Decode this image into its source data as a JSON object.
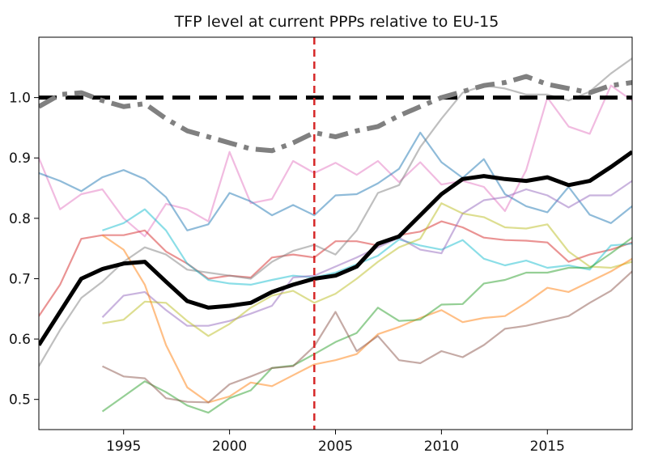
{
  "chart_data": {
    "type": "line",
    "title": "TFP level at current PPPs relative to EU-15",
    "xlabel": "",
    "ylabel": "",
    "xlim": [
      1991,
      2019
    ],
    "ylim": [
      0.45,
      1.1
    ],
    "xticks": [
      1995,
      2000,
      2005,
      2010,
      2015
    ],
    "yticks": [
      0.5,
      0.6,
      0.7,
      0.8,
      0.9,
      1.0
    ],
    "xtick_labels": [
      "1995",
      "2000",
      "2005",
      "2010",
      "2015"
    ],
    "ytick_labels": [
      "0.5",
      "0.6",
      "0.7",
      "0.8",
      "0.9",
      "1.0"
    ],
    "grid": false,
    "legend": "none",
    "reference_lines": [
      {
        "orientation": "horizontal",
        "value": 1.0,
        "style": "dashed",
        "color": "#000000"
      },
      {
        "orientation": "vertical",
        "value": 2004,
        "style": "dashed",
        "color": "#d62728"
      }
    ],
    "series": [
      {
        "style": "thin",
        "color": "#e377c2",
        "x": [
          1991,
          1992,
          1993,
          1994,
          1995,
          1996,
          1997,
          1998,
          1999,
          2000,
          2001,
          2002,
          2003,
          2004,
          2005,
          2006,
          2007,
          2008,
          2009,
          2010,
          2011,
          2012,
          2013,
          2014,
          2015,
          2016,
          2017,
          2018,
          2019
        ],
        "y": [
          0.9,
          0.815,
          0.84,
          0.848,
          0.8,
          0.77,
          0.824,
          0.815,
          0.795,
          0.91,
          0.825,
          0.832,
          0.895,
          0.875,
          0.892,
          0.872,
          0.895,
          0.86,
          0.893,
          0.856,
          0.862,
          0.852,
          0.812,
          0.88,
          1.0,
          0.952,
          0.94,
          1.02,
          0.995
        ]
      },
      {
        "style": "thin",
        "color": "#1f77b4",
        "x": [
          1991,
          1992,
          1993,
          1994,
          1995,
          1996,
          1997,
          1998,
          1999,
          2000,
          2001,
          2002,
          2003,
          2004,
          2005,
          2006,
          2007,
          2008,
          2009,
          2010,
          2011,
          2012,
          2013,
          2014,
          2015,
          2016,
          2017,
          2018,
          2019
        ],
        "y": [
          0.875,
          0.862,
          0.845,
          0.868,
          0.88,
          0.865,
          0.835,
          0.78,
          0.79,
          0.842,
          0.828,
          0.805,
          0.822,
          0.805,
          0.838,
          0.84,
          0.858,
          0.882,
          0.942,
          0.893,
          0.867,
          0.898,
          0.84,
          0.82,
          0.81,
          0.852,
          0.806,
          0.792,
          0.82
        ]
      },
      {
        "style": "thin",
        "color": "#d62728",
        "x": [
          1991,
          1992,
          1993,
          1994,
          1995,
          1996,
          1997,
          1998,
          1999,
          2000,
          2001,
          2002,
          2003,
          2004,
          2005,
          2006,
          2007,
          2008,
          2009,
          2010,
          2011,
          2012,
          2013,
          2014,
          2015,
          2016,
          2017,
          2018,
          2019
        ],
        "y": [
          0.638,
          0.69,
          0.766,
          0.772,
          0.772,
          0.78,
          0.745,
          0.725,
          0.7,
          0.705,
          0.702,
          0.735,
          0.74,
          0.735,
          0.762,
          0.762,
          0.755,
          0.772,
          0.778,
          0.795,
          0.785,
          0.768,
          0.764,
          0.763,
          0.76,
          0.728,
          0.74,
          0.748,
          0.76
        ]
      },
      {
        "style": "thin",
        "color": "#7f7f7f",
        "x": [
          1991,
          1992,
          1993,
          1994,
          1995,
          1996,
          1997,
          1998,
          1999,
          2000,
          2001,
          2002,
          2003,
          2004,
          2005,
          2006,
          2007,
          2008,
          2009,
          2010,
          2011,
          2012,
          2013,
          2014,
          2015,
          2016,
          2017,
          2018,
          2019
        ],
        "y": [
          0.555,
          0.615,
          0.668,
          0.695,
          0.728,
          0.752,
          0.74,
          0.715,
          0.71,
          0.705,
          0.7,
          0.728,
          0.746,
          0.756,
          0.74,
          0.78,
          0.842,
          0.855,
          0.918,
          0.965,
          1.008,
          1.02,
          1.015,
          1.005,
          1.005,
          0.995,
          1.01,
          1.04,
          1.065
        ]
      },
      {
        "style": "thin",
        "color": "#17becf",
        "x": [
          1994,
          1995,
          1996,
          1997,
          1998,
          1999,
          2000,
          2001,
          2002,
          2003,
          2004,
          2005,
          2006,
          2007,
          2008,
          2009,
          2010,
          2011,
          2012,
          2013,
          2014,
          2015,
          2016,
          2017,
          2018,
          2019
        ],
        "y": [
          0.78,
          0.792,
          0.815,
          0.78,
          0.725,
          0.698,
          0.692,
          0.69,
          0.698,
          0.705,
          0.702,
          0.71,
          0.724,
          0.738,
          0.765,
          0.755,
          0.748,
          0.764,
          0.733,
          0.722,
          0.73,
          0.718,
          0.722,
          0.715,
          0.755,
          0.758
        ]
      },
      {
        "style": "thin",
        "color": "#9467bd",
        "x": [
          1994,
          1995,
          1996,
          1997,
          1998,
          1999,
          2000,
          2001,
          2002,
          2003,
          2004,
          2005,
          2006,
          2007,
          2008,
          2009,
          2010,
          2011,
          2012,
          2013,
          2014,
          2015,
          2016,
          2017,
          2018,
          2019
        ],
        "y": [
          0.636,
          0.672,
          0.678,
          0.648,
          0.622,
          0.622,
          0.63,
          0.642,
          0.655,
          0.702,
          0.705,
          0.72,
          0.735,
          0.752,
          0.768,
          0.748,
          0.742,
          0.808,
          0.83,
          0.835,
          0.848,
          0.838,
          0.818,
          0.838,
          0.838,
          0.862
        ]
      },
      {
        "style": "thin",
        "color": "#bcbd22",
        "x": [
          1994,
          1995,
          1996,
          1997,
          1998,
          1999,
          2000,
          2001,
          2002,
          2003,
          2004,
          2005,
          2006,
          2007,
          2008,
          2009,
          2010,
          2011,
          2012,
          2013,
          2014,
          2015,
          2016,
          2017,
          2018,
          2019
        ],
        "y": [
          0.626,
          0.632,
          0.662,
          0.66,
          0.63,
          0.605,
          0.625,
          0.652,
          0.672,
          0.68,
          0.66,
          0.675,
          0.7,
          0.728,
          0.752,
          0.766,
          0.825,
          0.808,
          0.802,
          0.785,
          0.783,
          0.79,
          0.745,
          0.72,
          0.718,
          0.728
        ]
      },
      {
        "style": "thin",
        "color": "#ff7f0e",
        "x": [
          1994,
          1995,
          1996,
          1997,
          1998,
          1999,
          2000,
          2001,
          2002,
          2003,
          2004,
          2005,
          2006,
          2007,
          2008,
          2009,
          2010,
          2011,
          2012,
          2013,
          2014,
          2015,
          2016,
          2017,
          2018,
          2019
        ],
        "y": [
          0.772,
          0.748,
          0.69,
          0.59,
          0.52,
          0.495,
          0.505,
          0.528,
          0.522,
          0.54,
          0.558,
          0.565,
          0.575,
          0.608,
          0.62,
          0.635,
          0.648,
          0.628,
          0.635,
          0.638,
          0.66,
          0.685,
          0.678,
          0.695,
          0.712,
          0.733
        ]
      },
      {
        "style": "thin",
        "color": "#2ca02c",
        "x": [
          1994,
          1995,
          1996,
          1997,
          1998,
          1999,
          2000,
          2001,
          2002,
          2003,
          2004,
          2005,
          2006,
          2007,
          2008,
          2009,
          2010,
          2011,
          2012,
          2013,
          2014,
          2015,
          2016,
          2017,
          2018,
          2019
        ],
        "y": [
          0.48,
          0.505,
          0.53,
          0.512,
          0.49,
          0.478,
          0.502,
          0.515,
          0.552,
          0.556,
          0.575,
          0.595,
          0.61,
          0.652,
          0.63,
          0.632,
          0.657,
          0.658,
          0.692,
          0.698,
          0.71,
          0.71,
          0.718,
          0.718,
          0.742,
          0.768
        ]
      },
      {
        "style": "thin",
        "color": "#8c564b",
        "x": [
          1994,
          1995,
          1996,
          1997,
          1998,
          1999,
          2000,
          2001,
          2002,
          2003,
          2004,
          2005,
          2006,
          2007,
          2008,
          2009,
          2010,
          2011,
          2012,
          2013,
          2014,
          2015,
          2016,
          2017,
          2018,
          2019
        ],
        "y": [
          0.555,
          0.538,
          0.535,
          0.502,
          0.496,
          0.495,
          0.525,
          0.538,
          0.552,
          0.555,
          0.588,
          0.645,
          0.58,
          0.605,
          0.565,
          0.56,
          0.58,
          0.57,
          0.59,
          0.617,
          0.622,
          0.63,
          0.638,
          0.66,
          0.68,
          0.712
        ]
      },
      {
        "style": "dashdot",
        "color": "#808080",
        "x": [
          1991,
          1992,
          1993,
          1994,
          1995,
          1996,
          1997,
          1998,
          1999,
          2000,
          2001,
          2002,
          2003,
          2004,
          2005,
          2006,
          2007,
          2008,
          2009,
          2010,
          2011,
          2012,
          2013,
          2014,
          2015,
          2016,
          2017,
          2018,
          2019
        ],
        "y": [
          0.985,
          1.005,
          1.008,
          0.995,
          0.985,
          0.99,
          0.965,
          0.945,
          0.935,
          0.925,
          0.915,
          0.912,
          0.925,
          0.942,
          0.935,
          0.945,
          0.952,
          0.97,
          0.985,
          1.0,
          1.01,
          1.02,
          1.025,
          1.035,
          1.022,
          1.015,
          1.008,
          1.02,
          1.025
        ]
      },
      {
        "style": "bold",
        "color": "#000000",
        "x": [
          1991,
          1992,
          1993,
          1994,
          1995,
          1996,
          1997,
          1998,
          1999,
          2000,
          2001,
          2002,
          2003,
          2004,
          2005,
          2006,
          2007,
          2008,
          2009,
          2010,
          2011,
          2012,
          2013,
          2014,
          2015,
          2016,
          2017,
          2018,
          2019
        ],
        "y": [
          0.59,
          0.645,
          0.7,
          0.716,
          0.725,
          0.728,
          0.695,
          0.663,
          0.652,
          0.655,
          0.66,
          0.678,
          0.69,
          0.7,
          0.705,
          0.72,
          0.758,
          0.77,
          0.805,
          0.84,
          0.865,
          0.87,
          0.865,
          0.862,
          0.868,
          0.855,
          0.862,
          0.885,
          0.91
        ]
      }
    ]
  }
}
